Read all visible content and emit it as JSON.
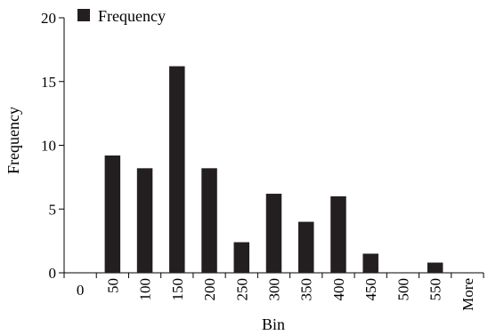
{
  "chart_data": {
    "type": "bar",
    "categories": [
      "0",
      "50",
      "100",
      "150",
      "200",
      "250",
      "300",
      "350",
      "400",
      "450",
      "500",
      "550",
      "More"
    ],
    "series": [
      {
        "name": "Frequency",
        "values": [
          0,
          9.2,
          8.2,
          16.2,
          8.2,
          2.4,
          6.2,
          4,
          6,
          1.5,
          0,
          0.8,
          0
        ],
        "color": "#231f20"
      }
    ],
    "xlabel": "Bin",
    "ylabel": "Frequency",
    "ylim": [
      0,
      20
    ],
    "yticks": [
      0,
      5,
      10,
      15,
      20
    ],
    "grid": false,
    "legend_position": "top-left"
  }
}
